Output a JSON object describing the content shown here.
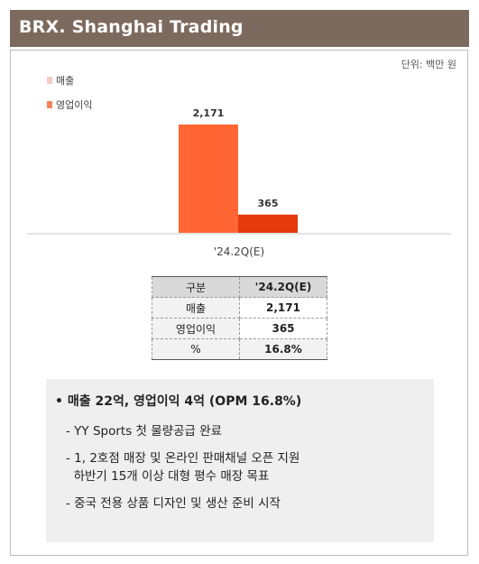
{
  "header": {
    "title": "BRX. Shanghai Trading"
  },
  "unit_note": "단위: 백만 원",
  "colors": {
    "header_bg": "#7d6a5e",
    "revenue": "#f4cccc",
    "op_income_legend": "#f4835c",
    "bar_revenue": "#ff6633",
    "bar_op_income": "#e53a0d"
  },
  "chart_data": {
    "type": "bar",
    "categories": [
      "'24.2Q(E)"
    ],
    "series": [
      {
        "name": "매출",
        "values": [
          2171
        ],
        "labels": [
          "2,171"
        ]
      },
      {
        "name": "영업이익",
        "values": [
          365
        ],
        "labels": [
          "365"
        ]
      }
    ],
    "legend_position": "top-left"
  },
  "table": {
    "header": [
      "구분",
      "'24.2Q(E)"
    ],
    "rows": [
      [
        "매출",
        "2,171"
      ],
      [
        "영업이익",
        "365"
      ],
      [
        "%",
        "16.8%"
      ]
    ]
  },
  "notes": {
    "main": "•  매출 22억, 영업이익 4억 (OPM 16.8%)",
    "items": [
      [
        "- YY Sports 첫 물량공급 완료"
      ],
      [
        "- 1, 2호점 매장 및 온라인 판매채널 오픈 지원",
        "  하반기 15개 이상 대형 평수 매장 목표"
      ],
      [
        "-  중국 전용 상품 디자인 및 생산 준비 시작"
      ]
    ]
  }
}
